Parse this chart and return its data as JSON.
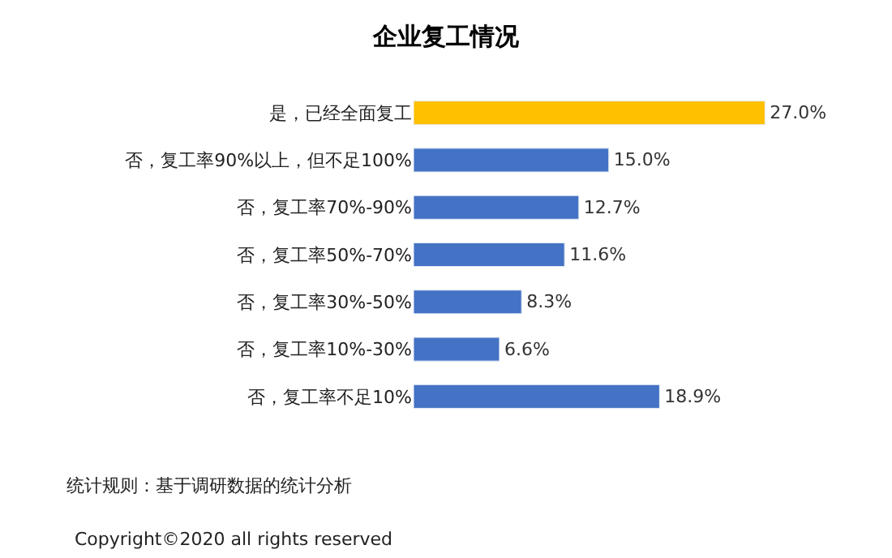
{
  "chart_data": {
    "type": "bar",
    "orientation": "horizontal",
    "title": "企业复工情况",
    "categories": [
      "是，已经全面复工",
      "否，复工率90%以上，但不足100%",
      "否，复工率70%-90%",
      "否，复工率50%-70%",
      "否，复工率30%-50%",
      "否，复工率10%-30%",
      "否，复工率不足10%"
    ],
    "values": [
      27.0,
      15.0,
      12.7,
      11.6,
      8.3,
      6.6,
      18.9
    ],
    "colors": [
      "#ffc000",
      "#4472c4",
      "#4472c4",
      "#4472c4",
      "#4472c4",
      "#4472c4",
      "#4472c4"
    ],
    "value_labels": [
      "27.0%",
      "15.0%",
      "12.7%",
      "11.6%",
      "8.3%",
      "6.6%",
      "18.9%"
    ],
    "annotations": [
      "统计规则：基于调研数据的统计分析",
      "Copyright©2020 all rights reserved"
    ]
  }
}
